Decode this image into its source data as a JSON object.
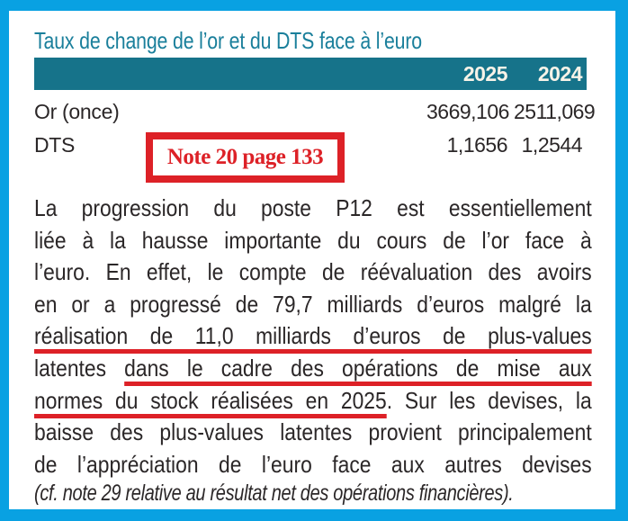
{
  "colors": {
    "border_blue": "#09a1e2",
    "teal_bar": "#16738a",
    "teal_title": "#1a7f9b",
    "header_text": "#f7f3e8",
    "red_annotation": "#dd2127",
    "text_dark": "#2b2728"
  },
  "table": {
    "title": "Taux de change de l’or et du DTS face à l’euro",
    "col_2025": "2025",
    "col_2024": "2024",
    "rows": [
      {
        "label": "Or (once)",
        "v2025": "3669,106",
        "v2024": "2511,069"
      },
      {
        "label": "DTS",
        "v2025": "1,1656",
        "v2024": "1,2544"
      }
    ]
  },
  "note_box": {
    "text": "Note 20 page 133"
  },
  "paragraph": {
    "lines": [
      {
        "segments": [
          {
            "text": "La progression du poste P12 est essentiellement",
            "underline": false
          }
        ]
      },
      {
        "segments": [
          {
            "text": "liée à la hausse importante du cours de l’or face à",
            "underline": false
          }
        ]
      },
      {
        "segments": [
          {
            "text": "l’euro. En effet, le compte de réévaluation des avoirs",
            "underline": false
          }
        ]
      },
      {
        "segments": [
          {
            "text": "en or a progressé de 79,7 milliards d’euros malgré la",
            "underline": false
          }
        ]
      },
      {
        "segments": [
          {
            "text": "réalisation de 11,0 milliards d’euros de plus-values",
            "underline": true
          }
        ]
      },
      {
        "segments": [
          {
            "text": "latentes ",
            "underline": false
          },
          {
            "text": "dans le cadre des opérations de mise aux",
            "underline": true
          }
        ]
      },
      {
        "segments": [
          {
            "text": "normes du stock réalisées en 2025",
            "underline": true
          },
          {
            "text": ". Sur les devises, la",
            "underline": false
          }
        ]
      },
      {
        "segments": [
          {
            "text": "baisse des plus-values latentes provient principalement",
            "underline": false
          }
        ]
      },
      {
        "segments": [
          {
            "text": "de l’appréciation de l’euro face aux autres devises",
            "underline": false
          }
        ]
      }
    ],
    "footnote": "(cf. note 29 relative au résultat net des opérations financières)."
  }
}
